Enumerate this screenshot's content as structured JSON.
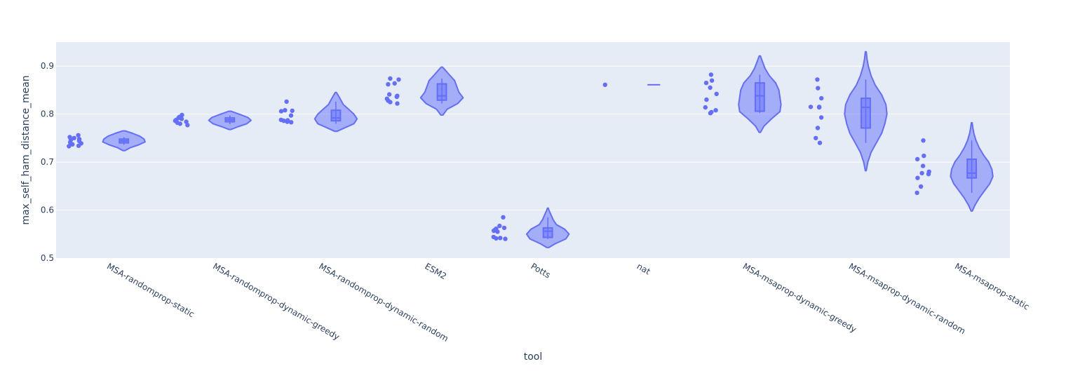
{
  "chart_data": {
    "type": "violin",
    "title": "",
    "xlabel": "tool",
    "ylabel": "max_self_ham_distance_mean",
    "ylim": [
      0.5,
      0.95
    ],
    "yticks": [
      0.5,
      0.6,
      0.7,
      0.8,
      0.9
    ],
    "ytick_labels": [
      "0.5",
      "0.6",
      "0.7",
      "0.8",
      "0.9"
    ],
    "grid": true,
    "colors": {
      "series": "#636efa",
      "plot_background": "#e5ecf6",
      "gridline": "#ffffff",
      "text": "#2a3f5f"
    },
    "categories": [
      {
        "name": "MSA-randomprop-static",
        "points": [
          0.756,
          0.752,
          0.75,
          0.748,
          0.746,
          0.744,
          0.741,
          0.739,
          0.737,
          0.734,
          0.733
        ],
        "violin_range": [
          0.724,
          0.765
        ],
        "box": {
          "q1": 0.74,
          "median": 0.744,
          "q3": 0.748,
          "lower_fence": 0.736,
          "upper_fence": 0.752
        },
        "density": [
          [
            0.724,
            0.05
          ],
          [
            0.73,
            0.3
          ],
          [
            0.736,
            0.7
          ],
          [
            0.742,
            1.0
          ],
          [
            0.748,
            0.95
          ],
          [
            0.754,
            0.75
          ],
          [
            0.76,
            0.4
          ],
          [
            0.765,
            0.05
          ]
        ]
      },
      {
        "name": "MSA-randomprop-dynamic-greedy",
        "points": [
          0.798,
          0.794,
          0.792,
          0.79,
          0.788,
          0.786,
          0.784,
          0.782,
          0.78,
          0.777
        ],
        "violin_range": [
          0.768,
          0.806
        ],
        "box": {
          "q1": 0.784,
          "median": 0.788,
          "q3": 0.792,
          "lower_fence": 0.779,
          "upper_fence": 0.797
        },
        "density": [
          [
            0.768,
            0.05
          ],
          [
            0.774,
            0.4
          ],
          [
            0.78,
            0.8
          ],
          [
            0.787,
            1.0
          ],
          [
            0.793,
            0.85
          ],
          [
            0.799,
            0.5
          ],
          [
            0.806,
            0.05
          ]
        ]
      },
      {
        "name": "MSA-randomprop-dynamic-random",
        "points": [
          0.826,
          0.808,
          0.807,
          0.806,
          0.797,
          0.788,
          0.787,
          0.786,
          0.784,
          0.783
        ],
        "violin_range": [
          0.764,
          0.845
        ],
        "box": {
          "q1": 0.786,
          "median": 0.792,
          "q3": 0.808,
          "lower_fence": 0.78,
          "upper_fence": 0.826
        },
        "density": [
          [
            0.764,
            0.05
          ],
          [
            0.772,
            0.45
          ],
          [
            0.78,
            0.85
          ],
          [
            0.79,
            1.0
          ],
          [
            0.8,
            0.85
          ],
          [
            0.81,
            0.6
          ],
          [
            0.82,
            0.35
          ],
          [
            0.832,
            0.2
          ],
          [
            0.845,
            0.03
          ]
        ]
      },
      {
        "name": "ESM2",
        "points": [
          0.874,
          0.872,
          0.864,
          0.862,
          0.841,
          0.838,
          0.836,
          0.832,
          0.828,
          0.825,
          0.822
        ],
        "violin_range": [
          0.798,
          0.898
        ],
        "box": {
          "q1": 0.829,
          "median": 0.838,
          "q3": 0.863,
          "lower_fence": 0.822,
          "upper_fence": 0.874
        },
        "density": [
          [
            0.798,
            0.05
          ],
          [
            0.81,
            0.25
          ],
          [
            0.822,
            0.75
          ],
          [
            0.834,
            1.0
          ],
          [
            0.846,
            0.8
          ],
          [
            0.858,
            0.7
          ],
          [
            0.87,
            0.6
          ],
          [
            0.882,
            0.35
          ],
          [
            0.892,
            0.15
          ],
          [
            0.898,
            0.03
          ]
        ]
      },
      {
        "name": "Potts",
        "points": [
          0.585,
          0.567,
          0.563,
          0.561,
          0.559,
          0.557,
          0.555,
          0.544,
          0.542,
          0.541,
          0.54
        ],
        "violin_range": [
          0.522,
          0.604
        ],
        "box": {
          "q1": 0.543,
          "median": 0.556,
          "q3": 0.563,
          "lower_fence": 0.54,
          "upper_fence": 0.585
        },
        "density": [
          [
            0.522,
            0.05
          ],
          [
            0.53,
            0.35
          ],
          [
            0.54,
            0.85
          ],
          [
            0.55,
            1.0
          ],
          [
            0.56,
            0.8
          ],
          [
            0.57,
            0.4
          ],
          [
            0.58,
            0.25
          ],
          [
            0.59,
            0.15
          ],
          [
            0.6,
            0.05
          ],
          [
            0.604,
            0.02
          ]
        ]
      },
      {
        "name": "nat",
        "points": [
          0.861
        ],
        "violin_range": [
          0.861,
          0.861
        ],
        "box": {
          "q1": 0.861,
          "median": 0.861,
          "q3": 0.861,
          "lower_fence": 0.861,
          "upper_fence": 0.861
        },
        "density": []
      },
      {
        "name": "MSA-msaprop-dynamic-greedy",
        "points": [
          0.882,
          0.87,
          0.865,
          0.855,
          0.842,
          0.83,
          0.814,
          0.808,
          0.804,
          0.802
        ],
        "violin_range": [
          0.762,
          0.921
        ],
        "box": {
          "q1": 0.806,
          "median": 0.838,
          "q3": 0.865,
          "lower_fence": 0.802,
          "upper_fence": 0.882
        },
        "density": [
          [
            0.762,
            0.03
          ],
          [
            0.775,
            0.2
          ],
          [
            0.79,
            0.55
          ],
          [
            0.805,
            0.95
          ],
          [
            0.82,
            1.0
          ],
          [
            0.835,
            0.95
          ],
          [
            0.85,
            0.9
          ],
          [
            0.865,
            0.75
          ],
          [
            0.88,
            0.45
          ],
          [
            0.895,
            0.25
          ],
          [
            0.91,
            0.12
          ],
          [
            0.921,
            0.03
          ]
        ]
      },
      {
        "name": "MSA-msaprop-dynamic-random",
        "points": [
          0.872,
          0.854,
          0.833,
          0.815,
          0.815,
          0.814,
          0.793,
          0.771,
          0.75,
          0.74
        ],
        "violin_range": [
          0.682,
          0.93
        ],
        "box": {
          "q1": 0.771,
          "median": 0.814,
          "q3": 0.833,
          "lower_fence": 0.74,
          "upper_fence": 0.872
        },
        "density": [
          [
            0.682,
            0.02
          ],
          [
            0.7,
            0.1
          ],
          [
            0.72,
            0.25
          ],
          [
            0.74,
            0.5
          ],
          [
            0.76,
            0.75
          ],
          [
            0.78,
            0.9
          ],
          [
            0.8,
            1.0
          ],
          [
            0.82,
            0.95
          ],
          [
            0.84,
            0.75
          ],
          [
            0.86,
            0.45
          ],
          [
            0.88,
            0.25
          ],
          [
            0.9,
            0.12
          ],
          [
            0.915,
            0.06
          ],
          [
            0.93,
            0.02
          ]
        ]
      },
      {
        "name": "MSA-msaprop-static",
        "points": [
          0.745,
          0.713,
          0.706,
          0.692,
          0.68,
          0.677,
          0.675,
          0.667,
          0.649,
          0.636
        ],
        "violin_range": [
          0.598,
          0.782
        ],
        "box": {
          "q1": 0.667,
          "median": 0.677,
          "q3": 0.706,
          "lower_fence": 0.636,
          "upper_fence": 0.745
        },
        "density": [
          [
            0.598,
            0.03
          ],
          [
            0.61,
            0.15
          ],
          [
            0.625,
            0.35
          ],
          [
            0.64,
            0.6
          ],
          [
            0.655,
            0.85
          ],
          [
            0.67,
            1.0
          ],
          [
            0.685,
            0.95
          ],
          [
            0.7,
            0.8
          ],
          [
            0.715,
            0.55
          ],
          [
            0.73,
            0.35
          ],
          [
            0.745,
            0.2
          ],
          [
            0.76,
            0.1
          ],
          [
            0.772,
            0.05
          ],
          [
            0.782,
            0.02
          ]
        ]
      }
    ]
  }
}
